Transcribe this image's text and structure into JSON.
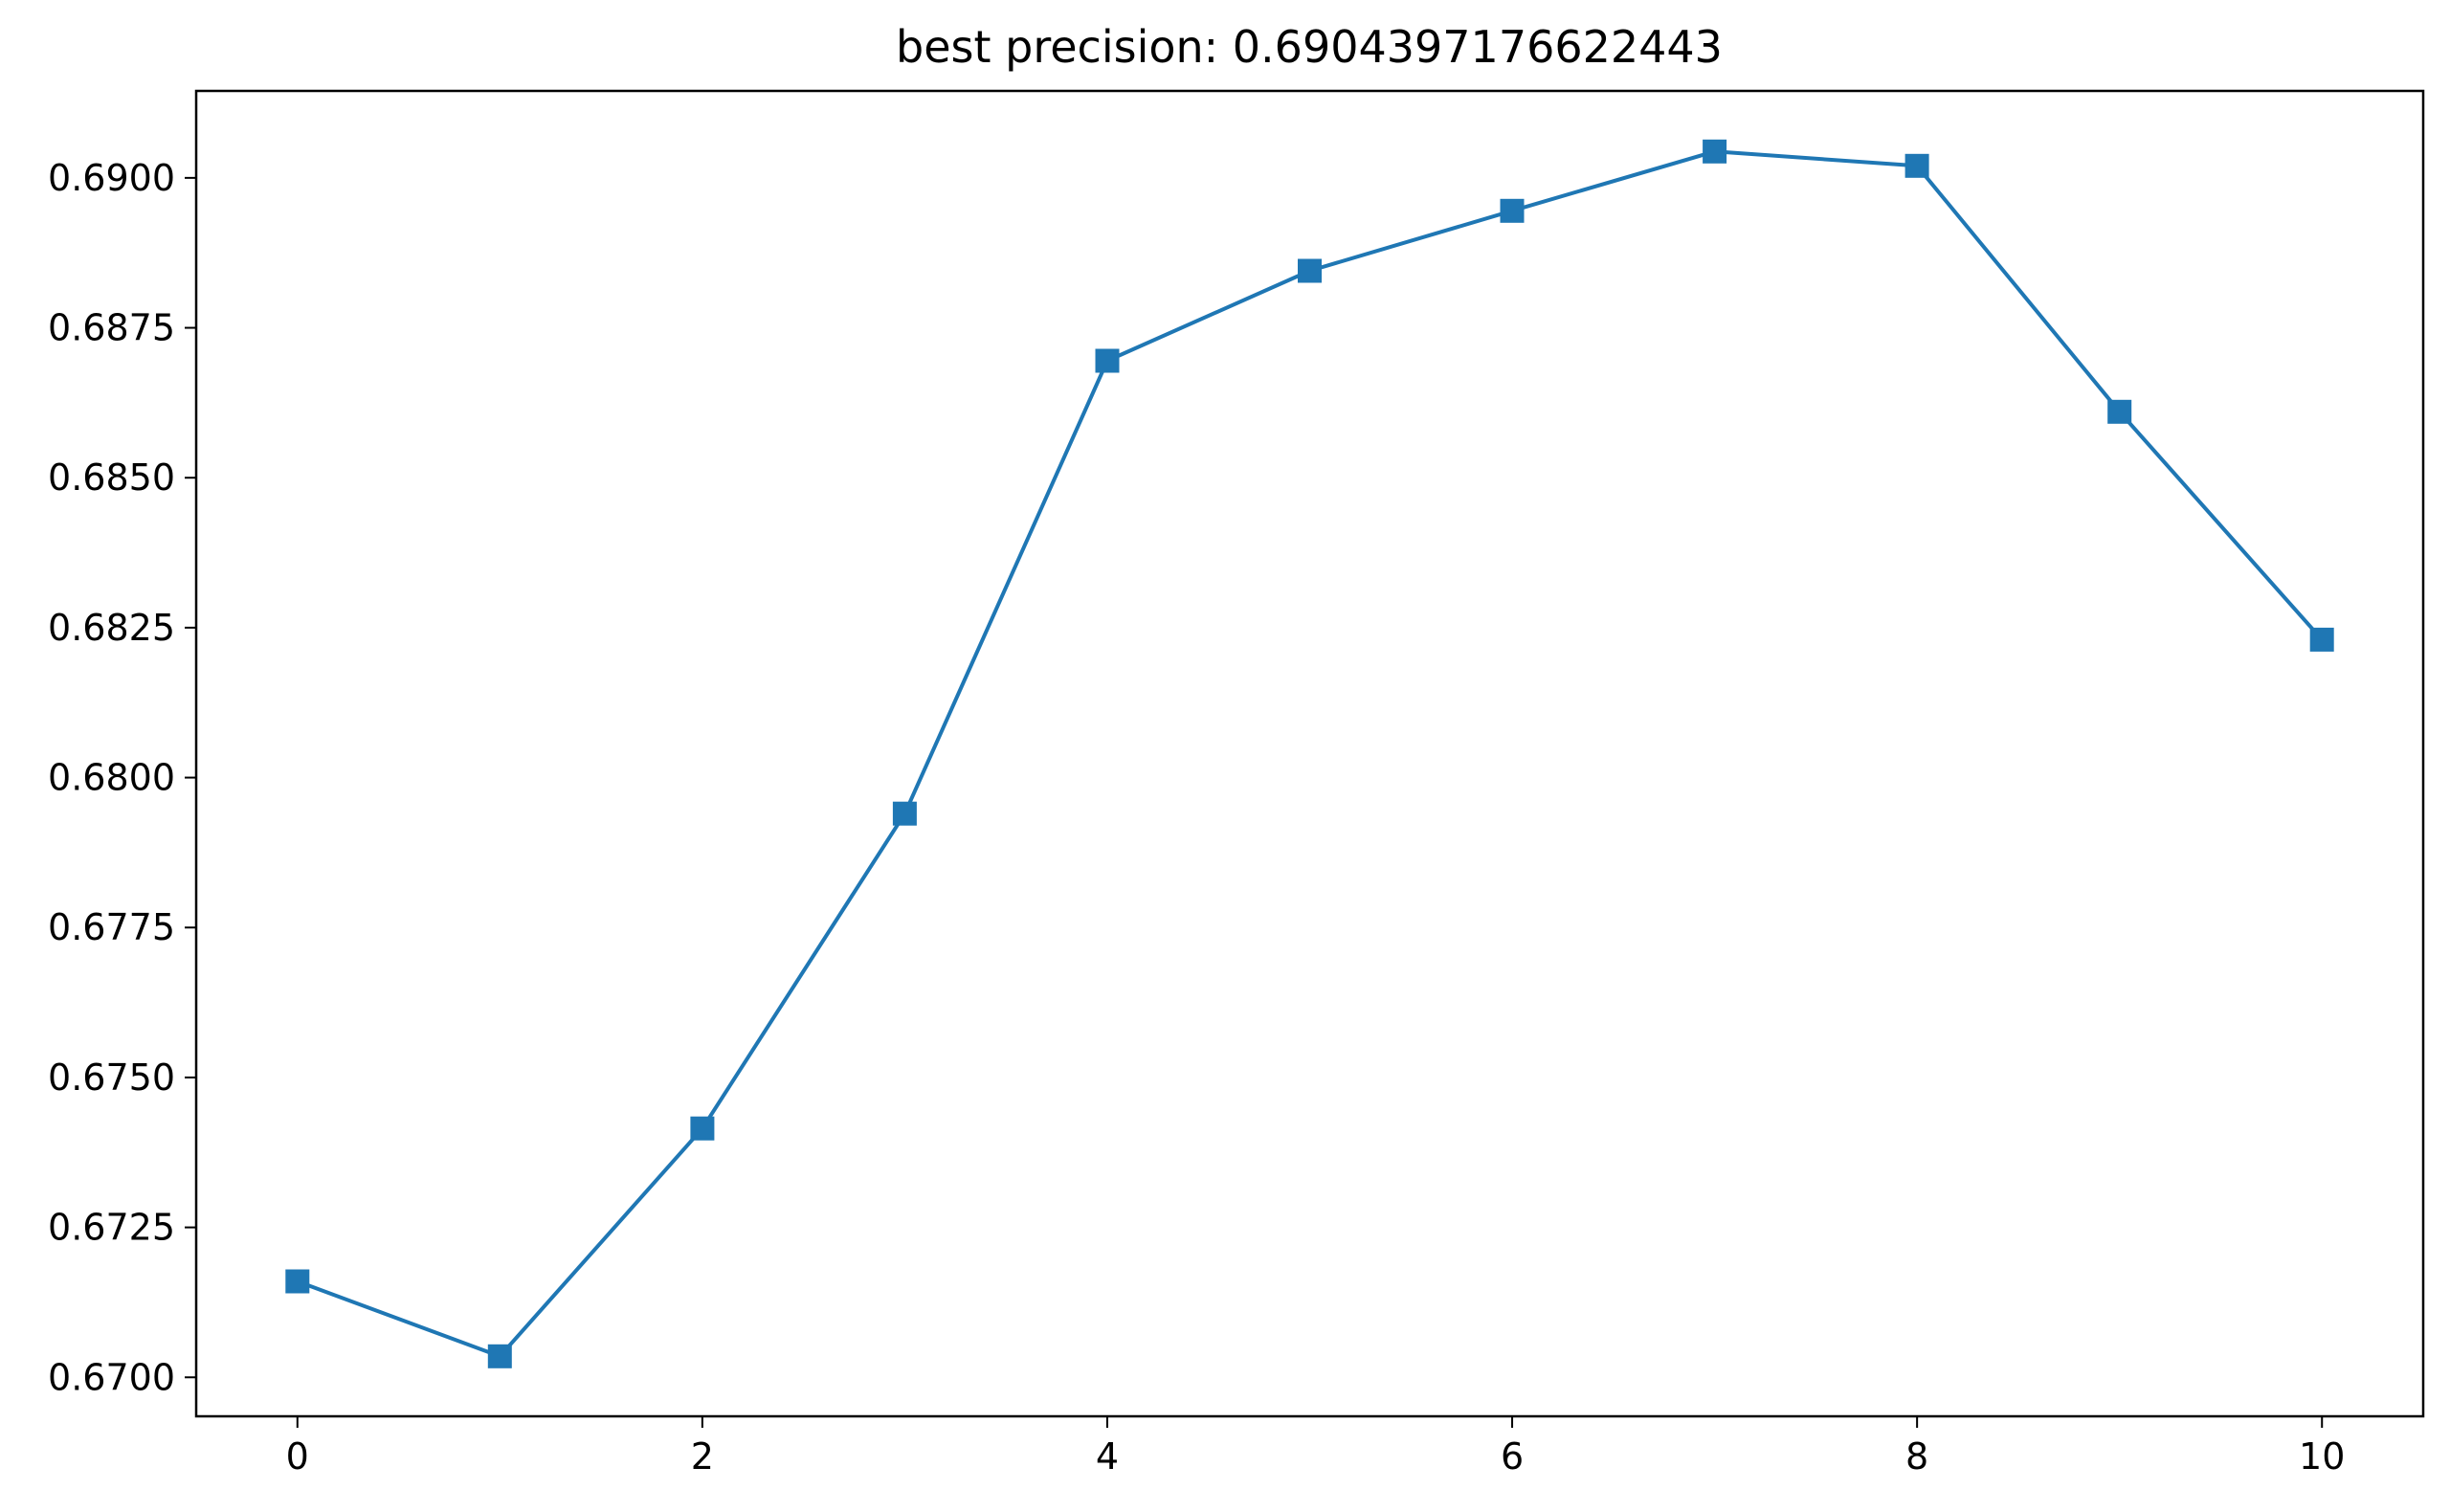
{
  "chart_data": {
    "type": "line",
    "title": "best precision: 0.6904397176622443",
    "xlabel": "",
    "ylabel": "",
    "xlim": [
      -0.5,
      10.5
    ],
    "ylim": [
      0.66935,
      0.69145
    ],
    "x_ticks": [
      0,
      2,
      4,
      6,
      8,
      10
    ],
    "x_tick_labels": [
      "0",
      "2",
      "4",
      "6",
      "8",
      "10"
    ],
    "y_ticks": [
      0.67,
      0.6725,
      0.675,
      0.6775,
      0.68,
      0.6825,
      0.685,
      0.6875,
      0.69
    ],
    "y_tick_labels": [
      "0.6700",
      "0.6725",
      "0.6750",
      "0.6775",
      "0.6800",
      "0.6825",
      "0.6850",
      "0.6875",
      "0.6900"
    ],
    "grid": false,
    "marker": "square",
    "series": [
      {
        "color": "#1f77b4",
        "x": [
          0,
          1,
          2,
          3,
          4,
          5,
          6,
          7,
          8,
          9,
          10
        ],
        "values": [
          0.6716,
          0.67035,
          0.67415,
          0.6794,
          0.68695,
          0.68845,
          0.68945,
          0.69044,
          0.6902,
          0.6861,
          0.6823
        ]
      }
    ]
  }
}
